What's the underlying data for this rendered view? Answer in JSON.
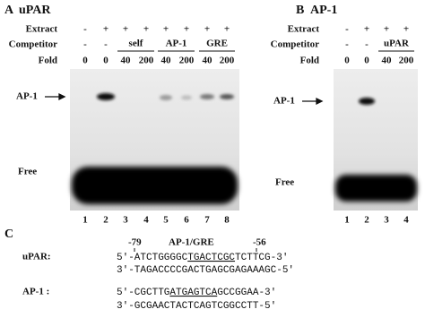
{
  "panel_a": {
    "letter": "A",
    "title": "uPAR",
    "extract": {
      "label": "Extract",
      "values": [
        "-",
        "+",
        "+",
        "+",
        "+",
        "+",
        "+",
        "+"
      ]
    },
    "competitor": {
      "label": "Competitor",
      "values": [
        "-",
        "-"
      ],
      "groups": [
        "self",
        "AP-1",
        "GRE"
      ]
    },
    "fold": {
      "label": "Fold",
      "values": [
        "0",
        "0",
        "40",
        "200",
        "40",
        "200",
        "40",
        "200"
      ]
    },
    "band_label": "AP-1",
    "free_label": "Free",
    "lanes": [
      "1",
      "2",
      "3",
      "4",
      "5",
      "6",
      "7",
      "8"
    ]
  },
  "panel_b": {
    "letter": "B",
    "title": "AP-1",
    "extract": {
      "label": "Extract",
      "values": [
        "-",
        "+",
        "+",
        "+"
      ]
    },
    "competitor": {
      "label": "Competitor",
      "values": [
        "-",
        "-"
      ],
      "groups": [
        "uPAR"
      ]
    },
    "fold": {
      "label": "Fold",
      "values": [
        "0",
        "0",
        "40",
        "200"
      ]
    },
    "band_label": "AP-1",
    "free_label": "Free",
    "lanes": [
      "1",
      "2",
      "3",
      "4"
    ]
  },
  "panel_c": {
    "letter": "C",
    "start": "-79",
    "site": "AP-1/GRE",
    "end": "-56",
    "upar": {
      "label": "uPAR:",
      "top": [
        "5'-ATCTGGGGC",
        "TGACTCGC",
        "TCTTCG-3'"
      ],
      "bottom": "3'-TAGACCCCGACTGAGCGAGAAAGC-5'"
    },
    "ap1": {
      "label": "AP-1 :",
      "top": [
        "5'-CGCTTG",
        "ATGAGTCA",
        "GCCGGAA-3'"
      ],
      "bottom": "3'-GCGAACTACTCAGTCGGCCTT-5'"
    }
  }
}
